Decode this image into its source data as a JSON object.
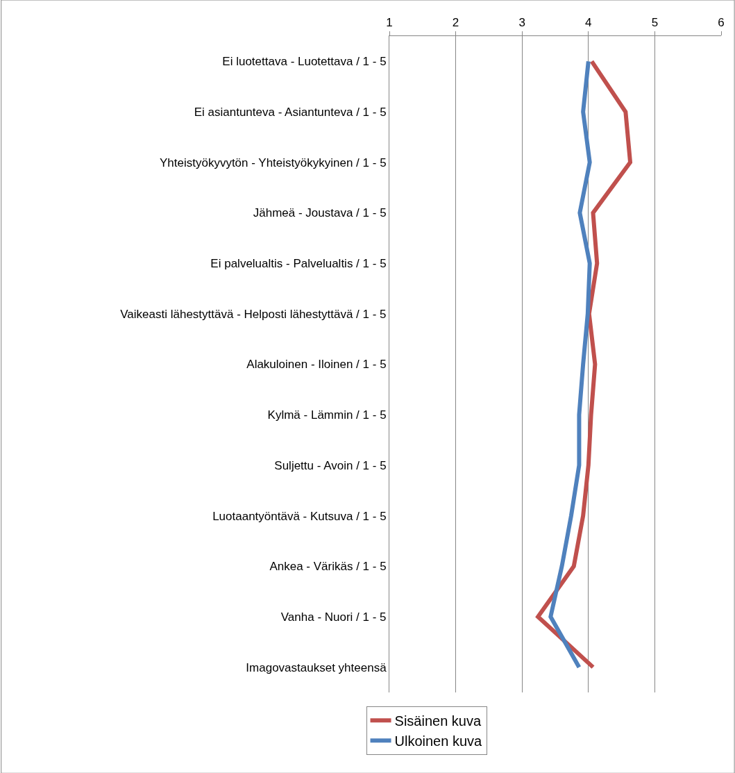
{
  "chart_data": {
    "type": "line",
    "categories": [
      "Ei luotettava - Luotettava / 1 - 5",
      "Ei asiantunteva - Asiantunteva / 1 - 5",
      "Yhteistyökyvytön - Yhteistyökykyinen / 1 - 5",
      "Jähmeä - Joustava / 1 - 5",
      "Ei palvelualtis - Palvelualtis / 1 - 5",
      "Vaikeasti lähestyttävä - Helposti lähestyttävä / 1 - 5",
      "Alakuloinen - Iloinen / 1 - 5",
      "Kylmä - Lämmin / 1 - 5",
      "Suljettu - Avoin / 1 - 5",
      "Luotaantyöntävä - Kutsuva / 1 - 5",
      "Ankea - Värikäs / 1 - 5",
      "Vanha - Nuori / 1 - 5",
      "Imagovastaukset yhteensä"
    ],
    "orientation": "horizontal",
    "series": [
      {
        "name": "Sisäinen kuva",
        "color": "#c0504d",
        "values": [
          4.05,
          4.56,
          4.63,
          4.07,
          4.13,
          4.01,
          4.1,
          4.04,
          4.0,
          3.92,
          3.78,
          3.24,
          4.07
        ]
      },
      {
        "name": "Ulkoinen kuva",
        "color": "#4f81bd",
        "values": [
          4.0,
          3.92,
          4.02,
          3.87,
          4.02,
          3.99,
          3.92,
          3.86,
          3.86,
          3.74,
          3.6,
          3.43,
          3.86
        ]
      }
    ],
    "xlim": [
      1,
      6
    ],
    "xticks": [
      1,
      2,
      3,
      4,
      5,
      6
    ],
    "grid": "x",
    "legend": "bottom",
    "marker": "none",
    "line_style": "solid"
  }
}
